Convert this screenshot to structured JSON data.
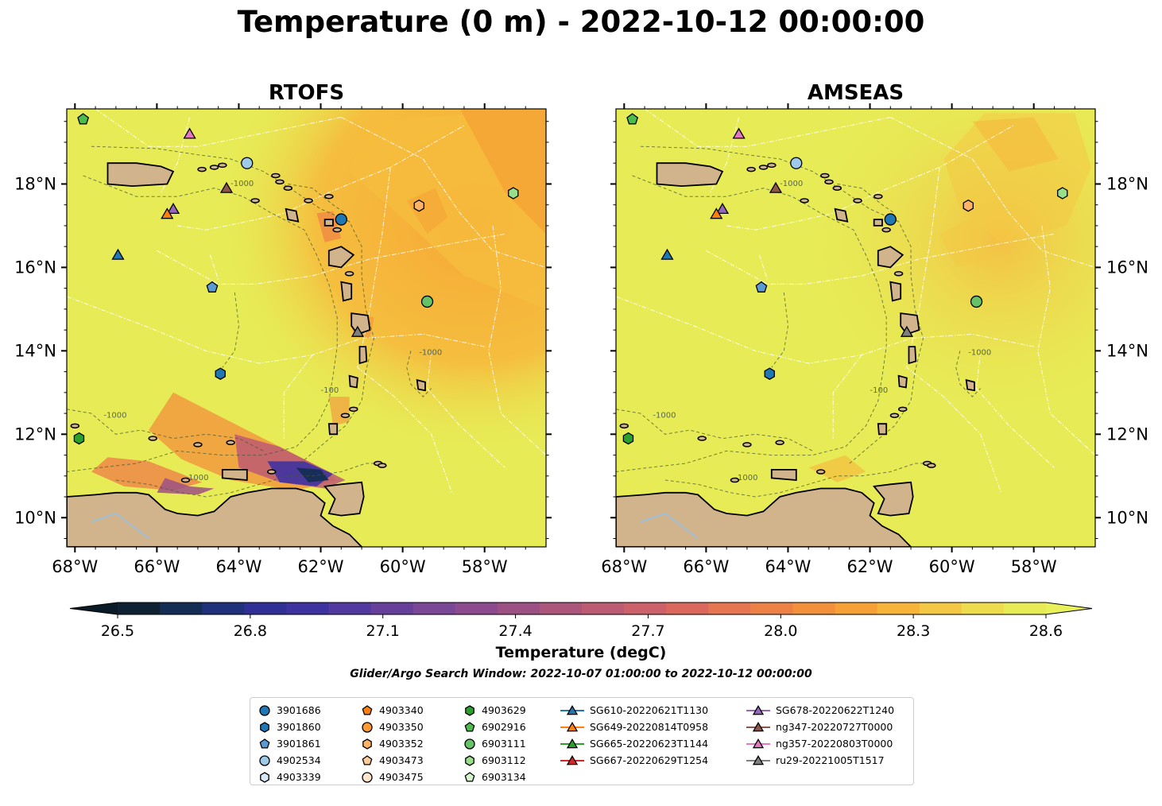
{
  "title": "Temperature (0 m) - 2022-10-12 00:00:00",
  "panels": [
    {
      "title": "RTOFS"
    },
    {
      "title": "AMSEAS"
    }
  ],
  "map": {
    "lon_range": [
      -68.2,
      -56.5
    ],
    "lat_range": [
      9.3,
      19.8
    ],
    "lon_ticks": [
      "68°W",
      "66°W",
      "64°W",
      "62°W",
      "60°W",
      "58°W"
    ],
    "lat_ticks": [
      "10°N",
      "12°N",
      "14°N",
      "16°N",
      "18°N"
    ],
    "contour_labels": [
      "-100",
      "-1000"
    ]
  },
  "colorbar": {
    "title": "Temperature (degC)",
    "min": 26.5,
    "max": 28.6,
    "ticks": [
      "26.5",
      "26.8",
      "27.1",
      "27.4",
      "27.7",
      "28.0",
      "28.3",
      "28.6"
    ],
    "colors": [
      "#0f2233",
      "#142d55",
      "#1f317a",
      "#2f2f96",
      "#3e32a1",
      "#52399f",
      "#663f9b",
      "#7a4696",
      "#8c4b8e",
      "#9d5084",
      "#ad567c",
      "#bd5b73",
      "#cd616a",
      "#dc685d",
      "#e67551",
      "#ee8246",
      "#f3903b",
      "#f6a036",
      "#f7b43a",
      "#f4c844",
      "#eedb4e",
      "#e7ec56"
    ]
  },
  "subtitle": "Glider/Argo Search Window: 2022-10-07 01:00:00 to 2022-10-12 00:00:00",
  "legend": [
    {
      "label": "3901686",
      "marker": "circle",
      "color": "#1f77b4"
    },
    {
      "label": "3901860",
      "marker": "hexagon",
      "color": "#1f77b4"
    },
    {
      "label": "3901861",
      "marker": "pentagon",
      "color": "#5a9bd4"
    },
    {
      "label": "4902534",
      "marker": "circle",
      "color": "#9ecae9"
    },
    {
      "label": "4903339",
      "marker": "hexagon",
      "color": "#d6eaf8"
    },
    {
      "label": "4903340",
      "marker": "pentagon",
      "color": "#ff7f0e"
    },
    {
      "label": "4903350",
      "marker": "circle",
      "color": "#ff9933"
    },
    {
      "label": "4903352",
      "marker": "hexagon",
      "color": "#ffb366"
    },
    {
      "label": "4903473",
      "marker": "pentagon",
      "color": "#ffcc99"
    },
    {
      "label": "4903475",
      "marker": "circle",
      "color": "#ffe5cc"
    },
    {
      "label": "4903629",
      "marker": "hexagon",
      "color": "#2ca02c"
    },
    {
      "label": "6902916",
      "marker": "pentagon",
      "color": "#4dbb4d"
    },
    {
      "label": "6903111",
      "marker": "circle",
      "color": "#66c266"
    },
    {
      "label": "6903112",
      "marker": "hexagon",
      "color": "#98df8a"
    },
    {
      "label": "6903134",
      "marker": "pentagon",
      "color": "#d4f5cc"
    },
    {
      "label": "SG610-20220621T1130",
      "marker": "triangle",
      "color": "#1f77b4"
    },
    {
      "label": "SG649-20220814T0958",
      "marker": "triangle",
      "color": "#ff7f0e"
    },
    {
      "label": "SG665-20220623T1144",
      "marker": "triangle",
      "color": "#2ca02c"
    },
    {
      "label": "SG667-20220629T1254",
      "marker": "triangle",
      "color": "#d62728"
    },
    {
      "label": "SG678-20220622T1240",
      "marker": "triangle",
      "color": "#9467bd"
    },
    {
      "label": "ng347-20220727T0000",
      "marker": "triangle",
      "color": "#8c564b"
    },
    {
      "label": "ng357-20220803T0000",
      "marker": "triangle",
      "color": "#e377c2"
    },
    {
      "label": "ru29-20221005T1517",
      "marker": "triangle",
      "color": "#7f7f7f"
    }
  ],
  "observations": [
    {
      "label": "6902916",
      "lon": -67.8,
      "lat": 19.55
    },
    {
      "label": "ng357-20220803T0000",
      "lon": -65.2,
      "lat": 19.2
    },
    {
      "label": "4902534",
      "lon": -63.8,
      "lat": 18.5
    },
    {
      "label": "ng347-20220727T0000",
      "lon": -64.3,
      "lat": 17.9
    },
    {
      "label": "SG678-20220622T1240",
      "lon": -65.6,
      "lat": 17.4
    },
    {
      "label": "SG649-20220814T0958",
      "lon": -65.75,
      "lat": 17.28
    },
    {
      "label": "3901686",
      "lon": -61.5,
      "lat": 17.15
    },
    {
      "label": "4903352",
      "lon": -59.6,
      "lat": 17.48
    },
    {
      "label": "6903112",
      "lon": -57.3,
      "lat": 17.78
    },
    {
      "label": "SG610-20220621T1130",
      "lon": -66.95,
      "lat": 16.3
    },
    {
      "label": "3901861",
      "lon": -64.65,
      "lat": 15.52
    },
    {
      "label": "6903111",
      "lon": -59.4,
      "lat": 15.18
    },
    {
      "label": "ru29-20221005T1517",
      "lon": -61.1,
      "lat": 14.45
    },
    {
      "label": "3901860",
      "lon": -64.45,
      "lat": 13.45
    },
    {
      "label": "4903629",
      "lon": -67.9,
      "lat": 11.9
    }
  ]
}
